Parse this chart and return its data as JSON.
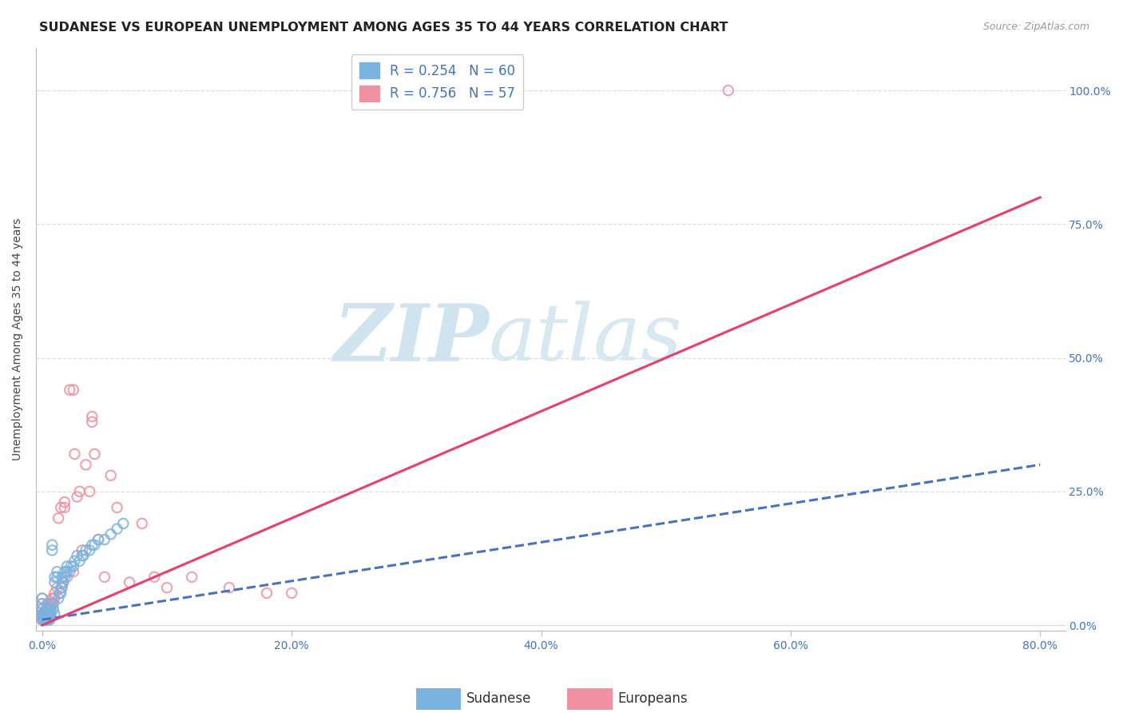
{
  "title": "SUDANESE VS EUROPEAN UNEMPLOYMENT AMONG AGES 35 TO 44 YEARS CORRELATION CHART",
  "source": "Source: ZipAtlas.com",
  "ylabel": "Unemployment Among Ages 35 to 44 years",
  "x_tick_labels": [
    "0.0%",
    "20.0%",
    "40.0%",
    "60.0%",
    "80.0%"
  ],
  "x_tick_values": [
    0.0,
    0.2,
    0.4,
    0.6,
    0.8
  ],
  "y_tick_labels": [
    "0.0%",
    "25.0%",
    "50.0%",
    "75.0%",
    "100.0%"
  ],
  "y_tick_values": [
    0.0,
    0.25,
    0.5,
    0.75,
    1.0
  ],
  "xlim": [
    -0.005,
    0.82
  ],
  "ylim": [
    -0.01,
    1.08
  ],
  "sudanese_color": "#7ab3e0",
  "europeans_color": "#f090a0",
  "sudanese_line_color": "#4472c4",
  "europeans_line_color": "#e8406a",
  "grid_color": "#dddddd",
  "background_color": "#ffffff",
  "watermark_zip": "ZIP",
  "watermark_atlas": "atlas",
  "watermark_color": "#d0e4f0",
  "title_fontsize": 11.5,
  "axis_label_fontsize": 10,
  "tick_fontsize": 10,
  "legend_fontsize": 12,
  "source_fontsize": 9,
  "marker_size": 80,
  "sudanese_r": 0.254,
  "sudanese_n": 60,
  "europeans_r": 0.756,
  "europeans_n": 57,
  "sudanese_line_x0": 0.0,
  "sudanese_line_y0": 0.01,
  "sudanese_line_x1": 0.8,
  "sudanese_line_y1": 0.3,
  "europeans_line_x0": 0.0,
  "europeans_line_y0": 0.0,
  "europeans_line_x1": 0.8,
  "europeans_line_y1": 0.8,
  "sudanese_x": [
    0.0,
    0.0,
    0.0,
    0.0,
    0.0,
    0.001,
    0.001,
    0.002,
    0.002,
    0.003,
    0.003,
    0.003,
    0.004,
    0.004,
    0.005,
    0.005,
    0.005,
    0.005,
    0.006,
    0.006,
    0.006,
    0.007,
    0.007,
    0.008,
    0.008,
    0.009,
    0.009,
    0.01,
    0.01,
    0.01,
    0.012,
    0.012,
    0.013,
    0.014,
    0.015,
    0.015,
    0.016,
    0.016,
    0.017,
    0.018,
    0.018,
    0.02,
    0.02,
    0.022,
    0.023,
    0.025,
    0.026,
    0.028,
    0.03,
    0.032,
    0.033,
    0.035,
    0.038,
    0.04,
    0.042,
    0.045,
    0.05,
    0.055,
    0.06,
    0.065
  ],
  "sudanese_y": [
    0.01,
    0.02,
    0.03,
    0.04,
    0.05,
    0.01,
    0.02,
    0.01,
    0.02,
    0.01,
    0.02,
    0.03,
    0.01,
    0.02,
    0.01,
    0.02,
    0.03,
    0.04,
    0.01,
    0.02,
    0.03,
    0.02,
    0.03,
    0.14,
    0.15,
    0.03,
    0.04,
    0.02,
    0.08,
    0.09,
    0.09,
    0.1,
    0.05,
    0.06,
    0.06,
    0.07,
    0.08,
    0.09,
    0.08,
    0.09,
    0.1,
    0.1,
    0.11,
    0.1,
    0.11,
    0.11,
    0.12,
    0.13,
    0.12,
    0.13,
    0.13,
    0.14,
    0.14,
    0.15,
    0.15,
    0.16,
    0.16,
    0.17,
    0.18,
    0.19
  ],
  "europeans_x": [
    0.0,
    0.0,
    0.0,
    0.0,
    0.0,
    0.001,
    0.001,
    0.002,
    0.002,
    0.003,
    0.003,
    0.004,
    0.004,
    0.005,
    0.005,
    0.006,
    0.006,
    0.007,
    0.007,
    0.008,
    0.008,
    0.009,
    0.01,
    0.01,
    0.012,
    0.013,
    0.015,
    0.016,
    0.018,
    0.018,
    0.02,
    0.022,
    0.025,
    0.025,
    0.026,
    0.028,
    0.03,
    0.032,
    0.035,
    0.038,
    0.04,
    0.04,
    0.042,
    0.045,
    0.05,
    0.055,
    0.06,
    0.07,
    0.08,
    0.09,
    0.1,
    0.12,
    0.15,
    0.18,
    0.2,
    0.55,
    0.0
  ],
  "europeans_y": [
    0.01,
    0.02,
    0.03,
    0.04,
    0.05,
    0.01,
    0.02,
    0.01,
    0.02,
    0.01,
    0.02,
    0.03,
    0.04,
    0.02,
    0.03,
    0.02,
    0.03,
    0.03,
    0.04,
    0.04,
    0.05,
    0.05,
    0.05,
    0.06,
    0.07,
    0.2,
    0.22,
    0.07,
    0.22,
    0.23,
    0.09,
    0.44,
    0.1,
    0.44,
    0.32,
    0.24,
    0.25,
    0.14,
    0.3,
    0.25,
    0.38,
    0.39,
    0.32,
    0.16,
    0.09,
    0.28,
    0.22,
    0.08,
    0.19,
    0.09,
    0.07,
    0.09,
    0.07,
    0.06,
    0.06,
    1.0,
    0.02
  ]
}
